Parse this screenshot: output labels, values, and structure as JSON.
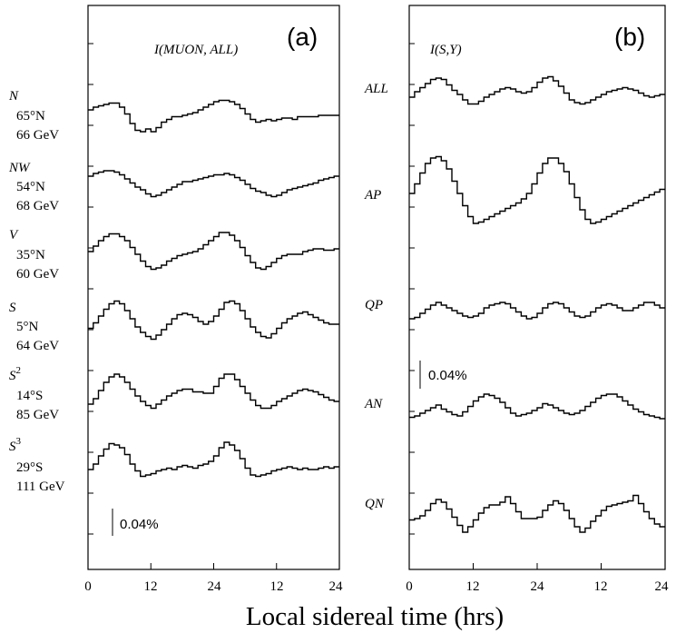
{
  "figure": {
    "xlabel": "Local sidereal time (hrs)",
    "x_ticks": [
      "0",
      "12",
      "24",
      "12",
      "24"
    ]
  },
  "chart_data": [
    {
      "type": "line",
      "panel": "(a)",
      "quantity": "I(MUON, ALL)",
      "xlim": [
        0,
        48
      ],
      "scale_bar": "0.04%",
      "series": [
        {
          "name": "N",
          "lines": [
            "65°N",
            "66 GeV"
          ],
          "values": [
            0.0,
            0.004,
            0.006,
            0.008,
            0.01,
            0.01,
            0.004,
            -0.006,
            -0.02,
            -0.03,
            -0.032,
            -0.028,
            -0.032,
            -0.026,
            -0.018,
            -0.014,
            -0.01,
            -0.01,
            -0.008,
            -0.006,
            -0.004,
            0.0,
            0.004,
            0.008,
            0.012,
            0.014,
            0.014,
            0.012,
            0.008,
            0.002,
            -0.006,
            -0.014,
            -0.018,
            -0.016,
            -0.014,
            -0.016,
            -0.014,
            -0.012,
            -0.012,
            -0.014,
            -0.01,
            -0.01,
            -0.01,
            -0.01,
            -0.008,
            -0.008,
            -0.008,
            -0.008
          ]
        },
        {
          "name": "NW",
          "lines": [
            "54°N",
            "68 GeV"
          ],
          "values": [
            0.004,
            0.008,
            0.01,
            0.012,
            0.012,
            0.01,
            0.006,
            0.0,
            -0.006,
            -0.012,
            -0.016,
            -0.022,
            -0.026,
            -0.024,
            -0.02,
            -0.016,
            -0.012,
            -0.008,
            -0.004,
            -0.004,
            -0.002,
            0.0,
            0.002,
            0.004,
            0.006,
            0.006,
            0.008,
            0.006,
            0.002,
            -0.002,
            -0.008,
            -0.014,
            -0.018,
            -0.02,
            -0.024,
            -0.026,
            -0.024,
            -0.02,
            -0.016,
            -0.014,
            -0.012,
            -0.01,
            -0.008,
            -0.006,
            -0.002,
            0.0,
            0.002,
            0.004
          ]
        },
        {
          "name": "V",
          "lines": [
            "35°N",
            "60 GeV"
          ],
          "values": [
            0.0,
            0.008,
            0.016,
            0.022,
            0.026,
            0.026,
            0.022,
            0.016,
            0.006,
            -0.004,
            -0.014,
            -0.022,
            -0.026,
            -0.024,
            -0.02,
            -0.014,
            -0.01,
            -0.006,
            -0.004,
            -0.002,
            0.0,
            0.004,
            0.01,
            0.016,
            0.022,
            0.028,
            0.028,
            0.024,
            0.016,
            0.006,
            -0.006,
            -0.016,
            -0.024,
            -0.026,
            -0.022,
            -0.016,
            -0.01,
            -0.006,
            -0.004,
            -0.004,
            -0.004,
            0.0,
            0.002,
            0.004,
            0.004,
            0.002,
            0.002,
            0.004
          ]
        },
        {
          "name": "S",
          "lines": [
            "5°N",
            "64 GeV"
          ],
          "values": [
            -0.01,
            -0.002,
            0.008,
            0.018,
            0.026,
            0.03,
            0.026,
            0.016,
            0.004,
            -0.008,
            -0.016,
            -0.022,
            -0.026,
            -0.02,
            -0.012,
            -0.004,
            0.004,
            0.01,
            0.012,
            0.01,
            0.006,
            0.0,
            -0.004,
            0.0,
            0.008,
            0.018,
            0.028,
            0.03,
            0.026,
            0.016,
            0.004,
            -0.008,
            -0.016,
            -0.022,
            -0.024,
            -0.018,
            -0.01,
            -0.002,
            0.004,
            0.008,
            0.012,
            0.014,
            0.01,
            0.006,
            0.002,
            -0.002,
            -0.004,
            -0.004
          ]
        },
        {
          "name": "S^2",
          "lines": [
            "14°S",
            "85 GeV"
          ],
          "values": [
            -0.016,
            -0.008,
            0.004,
            0.016,
            0.024,
            0.028,
            0.024,
            0.016,
            0.006,
            -0.004,
            -0.012,
            -0.018,
            -0.022,
            -0.016,
            -0.01,
            -0.004,
            0.0,
            0.004,
            0.006,
            0.006,
            0.002,
            0.002,
            0.0,
            0.0,
            0.01,
            0.022,
            0.028,
            0.028,
            0.02,
            0.01,
            0.0,
            -0.01,
            -0.018,
            -0.022,
            -0.022,
            -0.018,
            -0.012,
            -0.008,
            -0.004,
            0.0,
            0.004,
            0.006,
            0.004,
            0.002,
            -0.002,
            -0.006,
            -0.01,
            -0.012
          ]
        },
        {
          "name": "S^3",
          "lines": [
            "29°S",
            "111 GeV"
          ],
          "values": [
            -0.008,
            0.0,
            0.012,
            0.022,
            0.03,
            0.028,
            0.024,
            0.014,
            0.0,
            -0.01,
            -0.018,
            -0.016,
            -0.014,
            -0.01,
            -0.008,
            -0.006,
            -0.008,
            -0.004,
            -0.002,
            -0.004,
            -0.006,
            -0.002,
            0.0,
            0.004,
            0.012,
            0.024,
            0.032,
            0.028,
            0.02,
            0.008,
            -0.006,
            -0.016,
            -0.018,
            -0.016,
            -0.014,
            -0.01,
            -0.008,
            -0.006,
            -0.004,
            -0.006,
            -0.008,
            -0.006,
            -0.008,
            -0.008,
            -0.006,
            -0.004,
            -0.006,
            -0.004
          ]
        }
      ]
    },
    {
      "type": "line",
      "panel": "(b)",
      "quantity": "I(S,Y)",
      "xlim": [
        0,
        48
      ],
      "scale_bar": "0.04%",
      "series": [
        {
          "name": "ALL",
          "values": [
            0.0,
            0.008,
            0.014,
            0.02,
            0.026,
            0.028,
            0.026,
            0.018,
            0.01,
            0.004,
            -0.004,
            -0.01,
            -0.01,
            -0.006,
            0.0,
            0.004,
            0.008,
            0.012,
            0.014,
            0.012,
            0.008,
            0.006,
            0.008,
            0.014,
            0.022,
            0.028,
            0.03,
            0.024,
            0.016,
            0.006,
            -0.004,
            -0.008,
            -0.01,
            -0.008,
            -0.004,
            0.0,
            0.004,
            0.008,
            0.01,
            0.012,
            0.014,
            0.012,
            0.01,
            0.006,
            0.002,
            0.0,
            0.002,
            0.004
          ]
        },
        {
          "name": "AP",
          "values": [
            0.0,
            0.014,
            0.03,
            0.044,
            0.052,
            0.054,
            0.048,
            0.036,
            0.018,
            0.0,
            -0.018,
            -0.034,
            -0.044,
            -0.042,
            -0.038,
            -0.034,
            -0.03,
            -0.026,
            -0.022,
            -0.018,
            -0.014,
            -0.008,
            0.0,
            0.014,
            0.03,
            0.044,
            0.052,
            0.052,
            0.044,
            0.032,
            0.014,
            -0.006,
            -0.024,
            -0.038,
            -0.044,
            -0.042,
            -0.038,
            -0.034,
            -0.03,
            -0.026,
            -0.022,
            -0.018,
            -0.014,
            -0.01,
            -0.006,
            -0.002,
            0.002,
            0.006
          ]
        },
        {
          "name": "QP",
          "values": [
            -0.012,
            -0.01,
            -0.004,
            0.002,
            0.008,
            0.012,
            0.008,
            0.004,
            0.0,
            -0.004,
            -0.008,
            -0.01,
            -0.008,
            -0.004,
            0.004,
            0.008,
            0.01,
            0.012,
            0.01,
            0.004,
            -0.002,
            -0.008,
            -0.012,
            -0.01,
            -0.004,
            0.004,
            0.01,
            0.012,
            0.01,
            0.004,
            -0.002,
            -0.008,
            -0.01,
            -0.008,
            -0.002,
            0.004,
            0.008,
            0.01,
            0.008,
            0.004,
            0.0,
            0.0,
            0.004,
            0.008,
            0.012,
            0.012,
            0.008,
            0.004
          ]
        },
        {
          "name": "AN",
          "values": [
            -0.014,
            -0.012,
            -0.008,
            -0.004,
            0.0,
            0.004,
            -0.002,
            -0.006,
            -0.01,
            -0.012,
            -0.006,
            0.002,
            0.01,
            0.016,
            0.02,
            0.018,
            0.014,
            0.008,
            0.0,
            -0.008,
            -0.012,
            -0.01,
            -0.008,
            -0.004,
            0.0,
            0.006,
            0.004,
            0.0,
            -0.004,
            -0.008,
            -0.01,
            -0.008,
            -0.004,
            0.002,
            0.008,
            0.014,
            0.018,
            0.02,
            0.02,
            0.016,
            0.01,
            0.004,
            -0.002,
            -0.006,
            -0.01,
            -0.012,
            -0.014,
            -0.016
          ]
        },
        {
          "name": "QN",
          "values": [
            -0.01,
            -0.008,
            -0.004,
            0.004,
            0.014,
            0.02,
            0.016,
            0.006,
            -0.006,
            -0.018,
            -0.028,
            -0.02,
            -0.01,
            0.0,
            0.008,
            0.012,
            0.012,
            0.016,
            0.024,
            0.014,
            0.002,
            -0.008,
            -0.008,
            -0.008,
            -0.006,
            0.004,
            0.012,
            0.018,
            0.014,
            0.004,
            -0.008,
            -0.02,
            -0.028,
            -0.022,
            -0.012,
            -0.004,
            0.004,
            0.01,
            0.012,
            0.014,
            0.016,
            0.018,
            0.026,
            0.014,
            0.002,
            -0.008,
            -0.016,
            -0.02
          ]
        }
      ]
    }
  ]
}
